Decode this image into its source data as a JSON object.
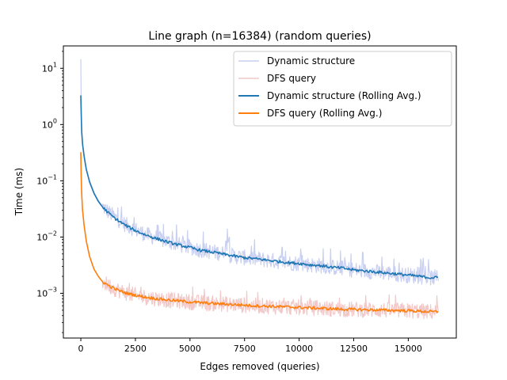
{
  "chart_data": {
    "type": "line",
    "title": "Line graph (n=16384) (random queries)",
    "xlabel": "Edges removed (queries)",
    "ylabel": "Time (ms)",
    "xlim": [
      -800,
      17200
    ],
    "ylim": [
      0.00016,
      25
    ],
    "yscale": "log",
    "x_ticks": [
      0,
      2500,
      5000,
      7500,
      10000,
      12500,
      15000
    ],
    "x_tick_labels": [
      "0",
      "2500",
      "5000",
      "7500",
      "10000",
      "12500",
      "15000"
    ],
    "y_ticks": [
      0.001,
      0.01,
      0.1,
      1,
      10
    ],
    "y_tick_labels": [
      {
        "base": "10",
        "exp": "−3"
      },
      {
        "base": "10",
        "exp": "−2"
      },
      {
        "base": "10",
        "exp": "−1"
      },
      {
        "base": "10",
        "exp": "0"
      },
      {
        "base": "10",
        "exp": "1"
      }
    ],
    "grid": false,
    "legend_position": "upper-right",
    "series": [
      {
        "name": "Dynamic structure",
        "color": "#c8cff0",
        "points": [
          [
            0,
            14.5
          ],
          [
            15,
            2.2
          ],
          [
            40,
            0.9
          ],
          [
            80,
            0.5
          ],
          [
            150,
            0.29
          ],
          [
            250,
            0.17
          ],
          [
            400,
            0.1
          ],
          [
            600,
            0.063
          ],
          [
            800,
            0.045
          ],
          [
            1000,
            0.035
          ],
          [
            1300,
            0.027
          ],
          [
            1600,
            0.022
          ],
          [
            2000,
            0.017
          ],
          [
            2500,
            0.0135
          ],
          [
            3000,
            0.011
          ],
          [
            3500,
            0.0095
          ],
          [
            4000,
            0.0083
          ],
          [
            4500,
            0.0073
          ],
          [
            5000,
            0.0066
          ],
          [
            5500,
            0.0059
          ],
          [
            6000,
            0.0055
          ],
          [
            6500,
            0.0051
          ],
          [
            6780,
            0.0095
          ],
          [
            6800,
            0.0048
          ],
          [
            7000,
            0.0046
          ],
          [
            7500,
            0.0043
          ],
          [
            8000,
            0.0041
          ],
          [
            8500,
            0.0039
          ],
          [
            9000,
            0.0037
          ],
          [
            9500,
            0.0035
          ],
          [
            10000,
            0.0034
          ],
          [
            10500,
            0.0032
          ],
          [
            11000,
            0.0031
          ],
          [
            11500,
            0.0029
          ],
          [
            12000,
            0.0028
          ],
          [
            12500,
            0.0026
          ],
          [
            13000,
            0.0025
          ],
          [
            13500,
            0.0024
          ],
          [
            14000,
            0.0023
          ],
          [
            14500,
            0.0022
          ],
          [
            15000,
            0.0021
          ],
          [
            15500,
            0.002
          ],
          [
            16000,
            0.0019
          ],
          [
            16384,
            0.0019
          ]
        ]
      },
      {
        "name": "DFS query",
        "color": "#f2c9c9",
        "points": [
          [
            0,
            0.33
          ],
          [
            15,
            0.12
          ],
          [
            40,
            0.06
          ],
          [
            80,
            0.03
          ],
          [
            150,
            0.016
          ],
          [
            250,
            0.0085
          ],
          [
            400,
            0.0045
          ],
          [
            600,
            0.0027
          ],
          [
            800,
            0.002
          ],
          [
            1000,
            0.0016
          ],
          [
            1300,
            0.00135
          ],
          [
            1600,
            0.00118
          ],
          [
            2000,
            0.00103
          ],
          [
            2500,
            0.00092
          ],
          [
            3000,
            0.00085
          ],
          [
            3500,
            0.0008
          ],
          [
            4000,
            0.00076
          ],
          [
            4500,
            0.00073
          ],
          [
            5000,
            0.0007
          ],
          [
            6000,
            0.00066
          ],
          [
            7000,
            0.00063
          ],
          [
            8000,
            0.0006
          ],
          [
            9000,
            0.00058
          ],
          [
            10000,
            0.00056
          ],
          [
            11000,
            0.00054
          ],
          [
            12000,
            0.00052
          ],
          [
            13000,
            0.00051
          ],
          [
            14000,
            0.0005
          ],
          [
            15000,
            0.00049
          ],
          [
            16000,
            0.00047
          ],
          [
            16384,
            0.00047
          ]
        ]
      },
      {
        "name": "Dynamic structure (Rolling Avg.)",
        "color": "#1f77b4",
        "points": [
          [
            0,
            3.3
          ],
          [
            15,
            1.6
          ],
          [
            40,
            0.75
          ],
          [
            80,
            0.45
          ],
          [
            150,
            0.27
          ],
          [
            250,
            0.16
          ],
          [
            400,
            0.095
          ],
          [
            600,
            0.06
          ],
          [
            800,
            0.043
          ],
          [
            1000,
            0.034
          ],
          [
            1300,
            0.026
          ],
          [
            1600,
            0.021
          ],
          [
            2000,
            0.0165
          ],
          [
            2500,
            0.013
          ],
          [
            3000,
            0.0108
          ],
          [
            3500,
            0.0093
          ],
          [
            4000,
            0.0081
          ],
          [
            4500,
            0.0072
          ],
          [
            5000,
            0.0065
          ],
          [
            5500,
            0.0058
          ],
          [
            6000,
            0.0054
          ],
          [
            6500,
            0.005
          ],
          [
            7000,
            0.0046
          ],
          [
            7500,
            0.0043
          ],
          [
            8000,
            0.0041
          ],
          [
            8500,
            0.0039
          ],
          [
            9000,
            0.0037
          ],
          [
            9500,
            0.0035
          ],
          [
            10000,
            0.0034
          ],
          [
            10500,
            0.0032
          ],
          [
            11000,
            0.0031
          ],
          [
            11500,
            0.0029
          ],
          [
            12000,
            0.0028
          ],
          [
            12500,
            0.0026
          ],
          [
            13000,
            0.0025
          ],
          [
            13500,
            0.0024
          ],
          [
            14000,
            0.0023
          ],
          [
            14500,
            0.0022
          ],
          [
            15000,
            0.0021
          ],
          [
            15500,
            0.002
          ],
          [
            16000,
            0.0019
          ],
          [
            16384,
            0.0019
          ]
        ]
      },
      {
        "name": "DFS query (Rolling Avg.)",
        "color": "#ff7f0e",
        "points": [
          [
            0,
            0.32
          ],
          [
            15,
            0.12
          ],
          [
            40,
            0.06
          ],
          [
            80,
            0.03
          ],
          [
            150,
            0.016
          ],
          [
            250,
            0.0085
          ],
          [
            400,
            0.0045
          ],
          [
            600,
            0.0027
          ],
          [
            800,
            0.002
          ],
          [
            1000,
            0.0016
          ],
          [
            1300,
            0.00135
          ],
          [
            1600,
            0.00118
          ],
          [
            2000,
            0.00103
          ],
          [
            2500,
            0.00092
          ],
          [
            3000,
            0.00085
          ],
          [
            3500,
            0.0008
          ],
          [
            4000,
            0.00076
          ],
          [
            4500,
            0.00073
          ],
          [
            5000,
            0.0007
          ],
          [
            6000,
            0.00066
          ],
          [
            7000,
            0.00063
          ],
          [
            8000,
            0.0006
          ],
          [
            9000,
            0.00058
          ],
          [
            10000,
            0.00056
          ],
          [
            11000,
            0.00054
          ],
          [
            12000,
            0.00052
          ],
          [
            13000,
            0.00051
          ],
          [
            14000,
            0.0005
          ],
          [
            15000,
            0.00049
          ],
          [
            16000,
            0.00047
          ],
          [
            16384,
            0.00047
          ]
        ]
      }
    ]
  }
}
